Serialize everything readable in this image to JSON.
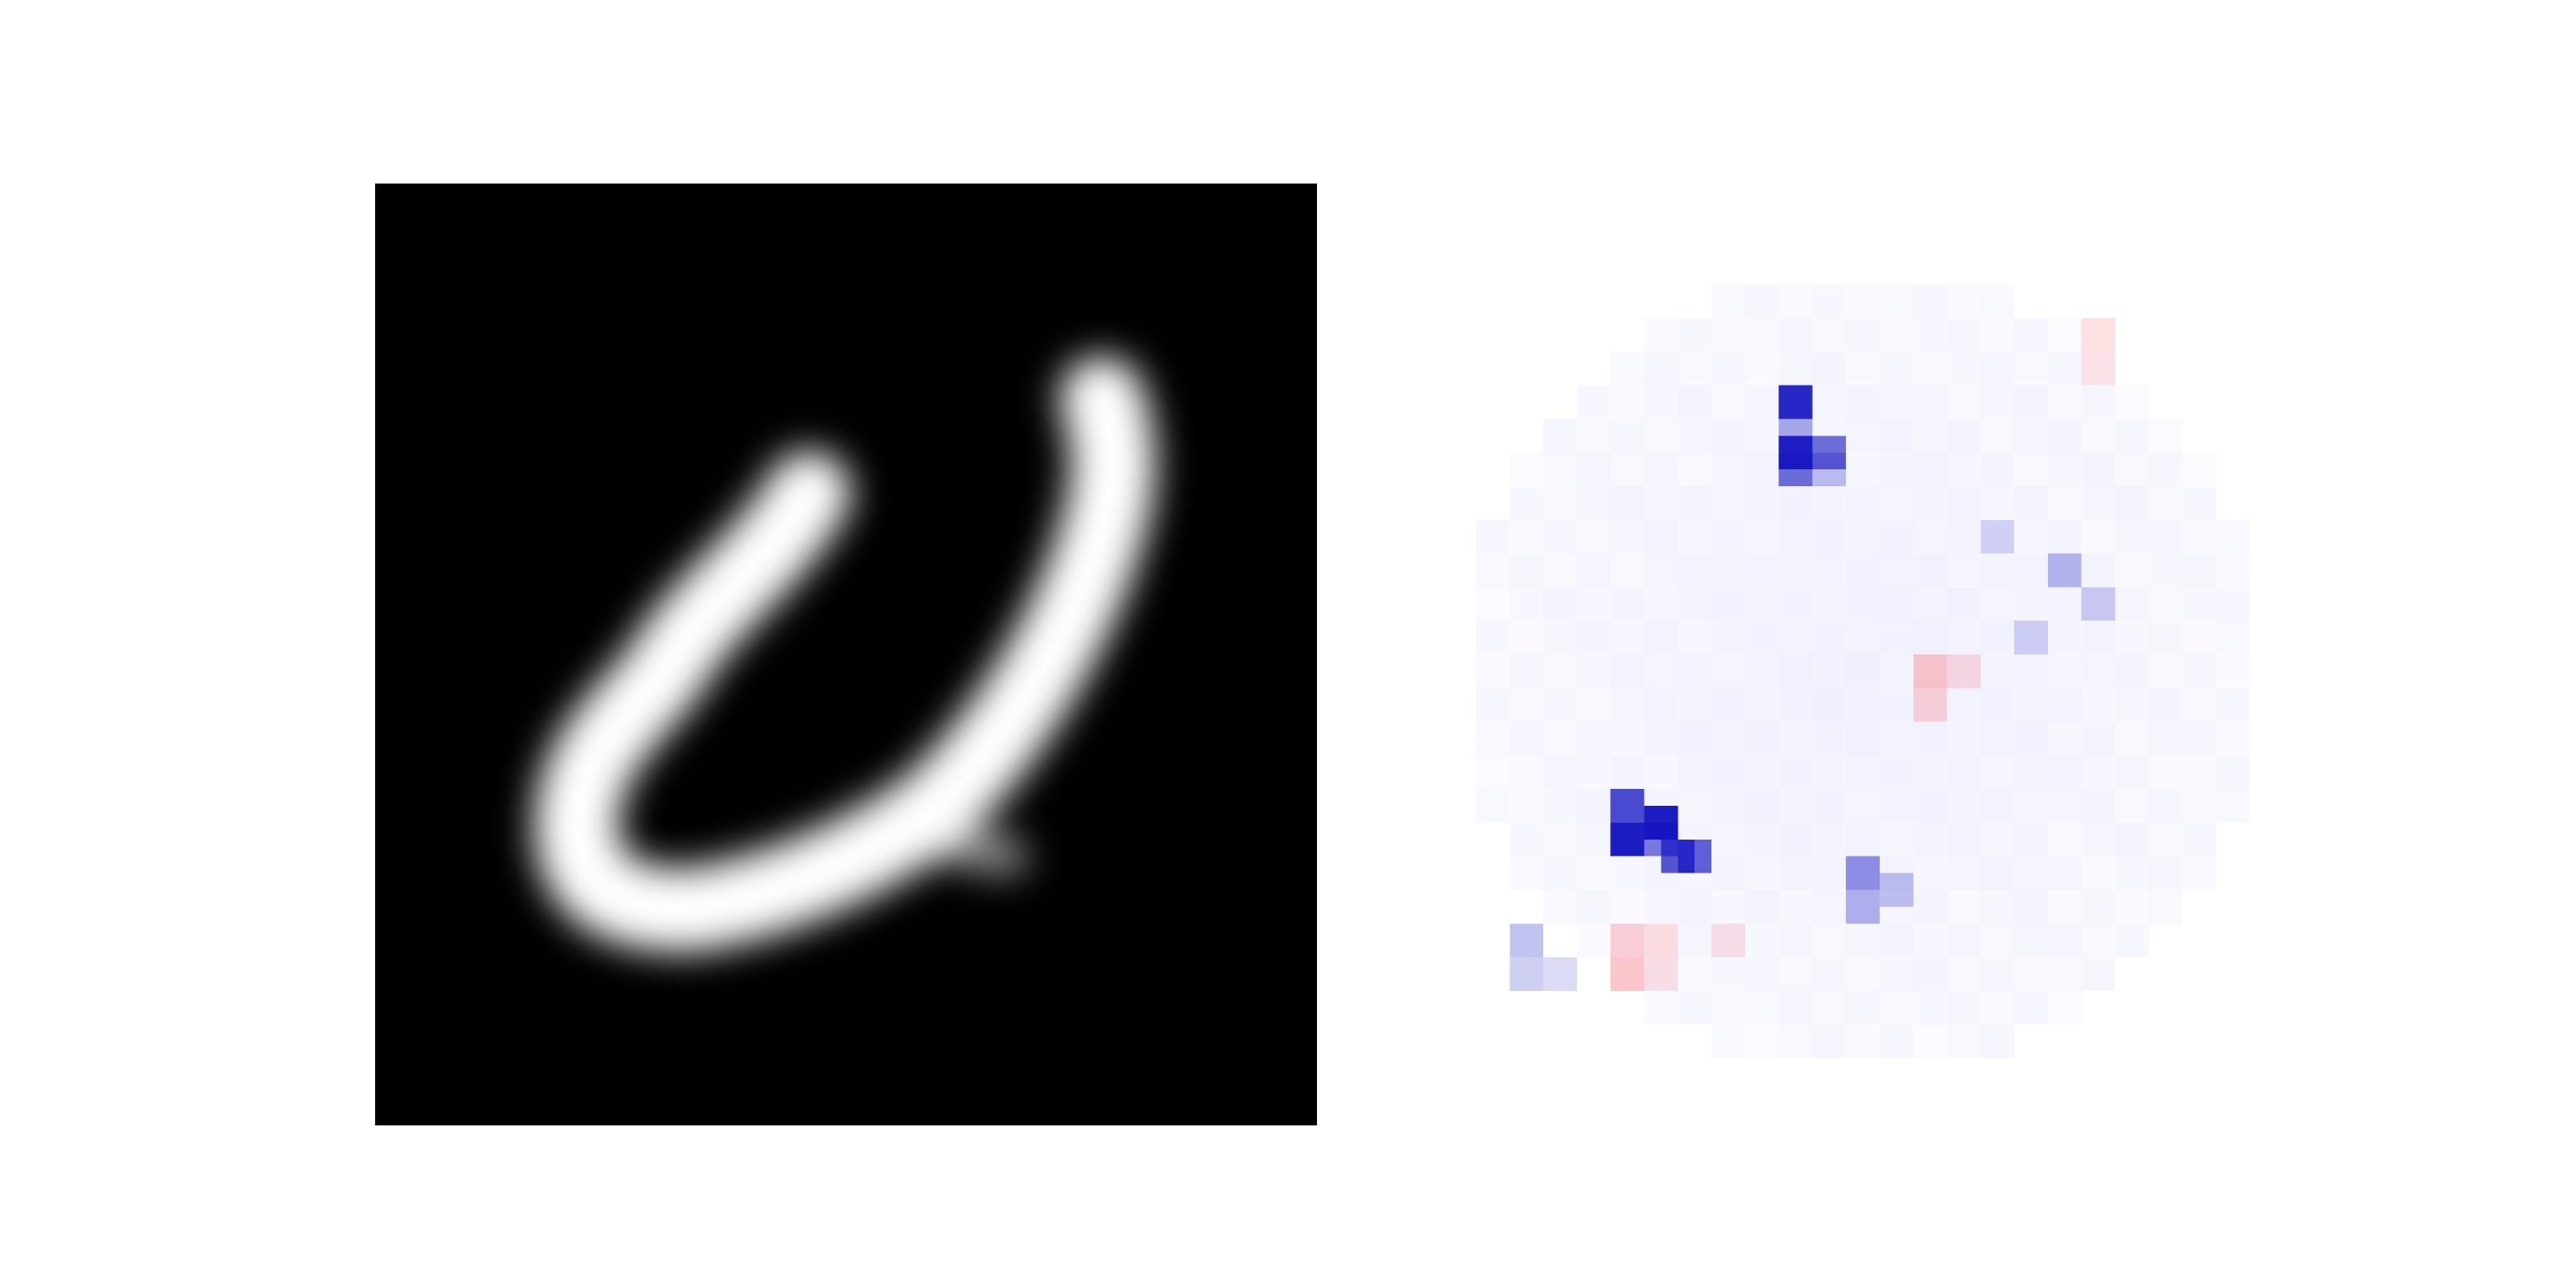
{
  "figure": {
    "panels": [
      {
        "id": "digit",
        "kind": "grayscale-image",
        "grid": 28,
        "background": "#000000",
        "foreground": "#ffffff"
      },
      {
        "id": "attribution",
        "kind": "diverging-heatmap",
        "grid": 28,
        "negative_color": "#00007f",
        "positive_color": "#ff0000",
        "neutral_color": "#ffffff"
      }
    ]
  }
}
